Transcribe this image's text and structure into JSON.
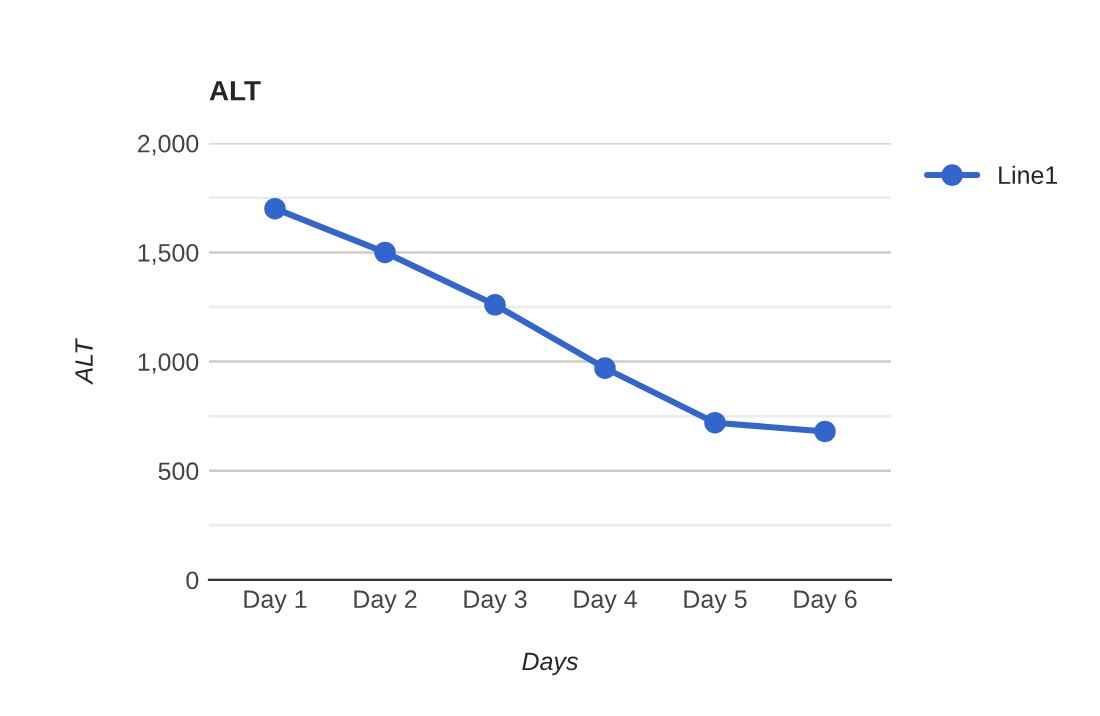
{
  "chart_data": {
    "type": "line",
    "title": "ALT",
    "xlabel": "Days",
    "ylabel": "ALT",
    "categories": [
      "Day 1",
      "Day 2",
      "Day 3",
      "Day 4",
      "Day 5",
      "Day 6"
    ],
    "series": [
      {
        "name": "Line1",
        "color": "#3366cc",
        "values": [
          1700,
          1500,
          1260,
          970,
          720,
          680
        ]
      }
    ],
    "ylim": [
      0,
      2000
    ],
    "yticks": [
      0,
      {
        "value": 250,
        "label": null
      },
      {
        "value": 500,
        "label": "500"
      },
      {
        "value": 750,
        "label": null
      },
      {
        "value": 1000,
        "label": "1,000"
      },
      {
        "value": 1250,
        "label": null
      },
      {
        "value": 1500,
        "label": "1,500"
      },
      {
        "value": 1750,
        "label": null
      },
      {
        "value": 2000,
        "label": "2,000"
      }
    ],
    "grid": "y",
    "legend": "right",
    "marker": "circle",
    "line_style": "solid"
  }
}
